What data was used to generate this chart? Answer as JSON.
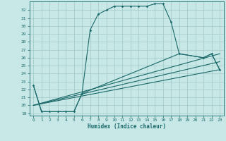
{
  "bg_color": "#c8e8e8",
  "grid_color": "#a0c8c8",
  "line_color": "#1a6868",
  "xlabel": "Humidex (Indice chaleur)",
  "xlim": [
    -0.5,
    23.5
  ],
  "ylim_low": 18.7,
  "ylim_high": 33.1,
  "ytick_vals": [
    19,
    20,
    21,
    22,
    23,
    24,
    25,
    26,
    27,
    28,
    29,
    30,
    31,
    32
  ],
  "xtick_vals": [
    0,
    1,
    2,
    3,
    4,
    5,
    6,
    7,
    8,
    9,
    10,
    11,
    12,
    13,
    14,
    15,
    16,
    17,
    18,
    19,
    20,
    21,
    22,
    23
  ],
  "main_x": [
    0,
    1,
    2,
    3,
    4,
    5,
    6,
    7,
    8,
    9,
    10,
    11,
    12,
    13,
    14,
    15,
    16,
    17,
    18,
    21,
    22,
    23
  ],
  "main_y": [
    22.5,
    19.2,
    19.2,
    19.2,
    19.2,
    19.2,
    21.5,
    29.5,
    31.5,
    32.0,
    32.5,
    32.5,
    32.5,
    32.5,
    32.5,
    32.8,
    32.8,
    30.5,
    26.5,
    26.0,
    26.5,
    24.5
  ],
  "line1_x": [
    0,
    23
  ],
  "line1_y": [
    20.0,
    24.5
  ],
  "line2_x": [
    0,
    23
  ],
  "line2_y": [
    20.0,
    25.5
  ],
  "line3_x": [
    0,
    23
  ],
  "line3_y": [
    20.0,
    26.5
  ],
  "extra_x": [
    0,
    1,
    2,
    3,
    4,
    5,
    6,
    18,
    21,
    22,
    23
  ],
  "extra_y": [
    22.5,
    19.2,
    19.2,
    19.2,
    19.2,
    19.2,
    21.5,
    26.5,
    26.0,
    26.5,
    24.5
  ]
}
